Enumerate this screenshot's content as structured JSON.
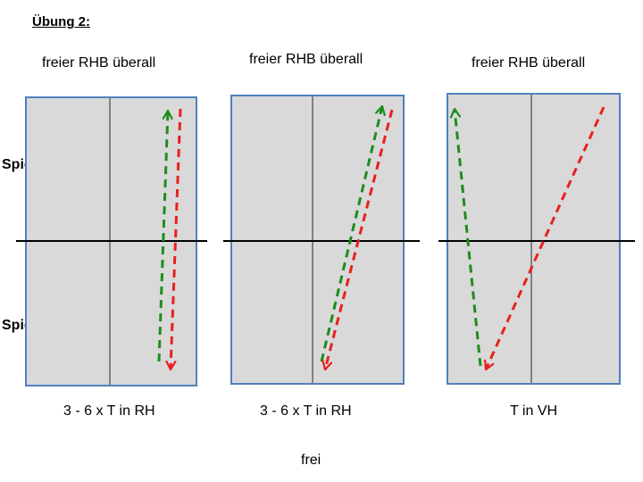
{
  "title": "Übung 2:",
  "players": {
    "top": "Spieler B",
    "bottom": "Spieler A"
  },
  "panels": [
    {
      "heading": "freier RHB überall",
      "caption": "3 - 6 x T in RH"
    },
    {
      "heading": "freier RHB überall",
      "caption": "3 - 6 x T in RH"
    },
    {
      "heading": "freier RHB überall",
      "caption": "T in VH"
    }
  ],
  "footer": "frei",
  "colors": {
    "table_fill": "#d9d9d9",
    "table_border": "#4f81bd",
    "center_line": "#808080",
    "net": "#000000",
    "arrow_green": "#1e8c1e",
    "arrow_red": "#e8201e"
  }
}
